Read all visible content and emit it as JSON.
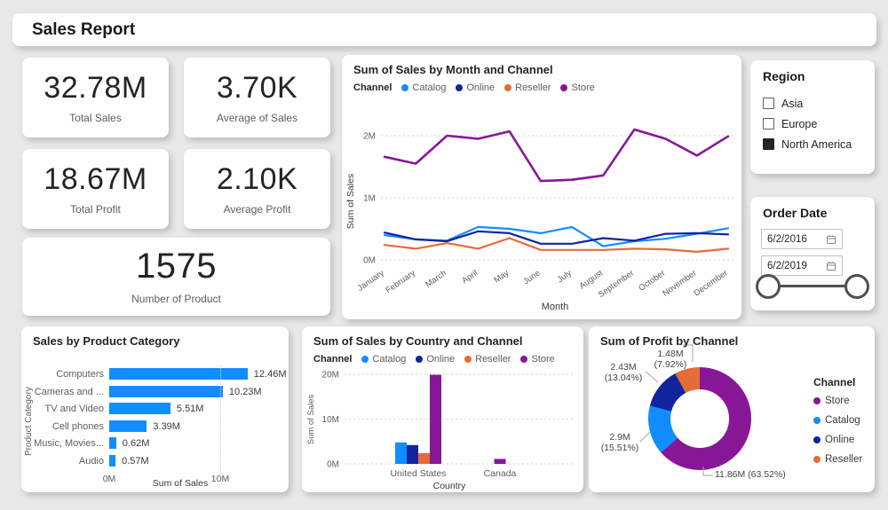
{
  "page": {
    "title": "Sales Report"
  },
  "palette": {
    "catalog": "#118DFF",
    "online": "#12239E",
    "reseller": "#E66C37",
    "store": "#881798",
    "bar_blue": "#118DFF"
  },
  "kpis": [
    {
      "value": "32.78M",
      "label": "Total Sales"
    },
    {
      "value": "3.70K",
      "label": "Average of Sales"
    },
    {
      "value": "18.67M",
      "label": "Total Profit"
    },
    {
      "value": "2.10K",
      "label": "Average Profit"
    },
    {
      "value": "1575",
      "label": "Number of Product"
    }
  ],
  "line_chart": {
    "type": "line",
    "title": "Sum of Sales by Month and Channel",
    "legend_title": "Channel",
    "xlabel": "Month",
    "ylabel": "Sum of Sales",
    "y_ticks": [
      "0M",
      "1M",
      "2M"
    ],
    "ylim": [
      0,
      2.3
    ],
    "categories": [
      "January",
      "February",
      "March",
      "April",
      "May",
      "June",
      "July",
      "August",
      "September",
      "October",
      "November",
      "December"
    ],
    "series": [
      {
        "name": "Catalog",
        "color_key": "catalog",
        "values": [
          0.4,
          0.33,
          0.31,
          0.53,
          0.5,
          0.43,
          0.53,
          0.22,
          0.3,
          0.34,
          0.42,
          0.51
        ]
      },
      {
        "name": "Online",
        "color_key": "online",
        "values": [
          0.44,
          0.33,
          0.3,
          0.46,
          0.43,
          0.26,
          0.26,
          0.35,
          0.31,
          0.42,
          0.43,
          0.41
        ]
      },
      {
        "name": "Reseller",
        "color_key": "reseller",
        "values": [
          0.24,
          0.18,
          0.27,
          0.18,
          0.35,
          0.16,
          0.16,
          0.16,
          0.18,
          0.17,
          0.13,
          0.18
        ]
      },
      {
        "name": "Store",
        "color_key": "store",
        "values": [
          1.66,
          1.55,
          2.0,
          1.95,
          2.07,
          1.27,
          1.29,
          1.36,
          2.1,
          1.95,
          1.68,
          1.99
        ]
      }
    ]
  },
  "region_filter": {
    "title": "Region",
    "options": [
      {
        "label": "Asia",
        "checked": false
      },
      {
        "label": "Europe",
        "checked": false
      },
      {
        "label": "North America",
        "checked": true
      }
    ]
  },
  "order_date": {
    "title": "Order Date",
    "start": "6/2/2016",
    "end": "6/2/2019"
  },
  "category_bar_chart": {
    "type": "bar",
    "title": "Sales by Product Category",
    "xlabel": "Sum of Sales",
    "ylabel": "Product Category",
    "x_ticks": [
      "0M",
      "10M"
    ],
    "xlim": [
      0,
      14
    ],
    "categories": [
      "Computers",
      "Cameras and ...",
      "TV and Video",
      "Cell phones",
      "Music, Movies...",
      "Audio"
    ],
    "values": [
      12.46,
      10.23,
      5.51,
      3.39,
      0.62,
      0.57
    ],
    "value_labels": [
      "12.46M",
      "10.23M",
      "5.51M",
      "3.39M",
      "0.62M",
      "0.57M"
    ]
  },
  "country_column_chart": {
    "type": "bar",
    "title": "Sum of Sales by Country and Channel",
    "legend_title": "Channel",
    "xlabel": "Country",
    "ylabel": "Sum of Sales",
    "y_ticks": [
      "0M",
      "10M",
      "20M"
    ],
    "ylim": [
      0,
      20
    ],
    "categories": [
      "United States",
      "Canada"
    ],
    "series": [
      {
        "name": "Catalog",
        "color_key": "catalog",
        "values": [
          4.8,
          0
        ]
      },
      {
        "name": "Online",
        "color_key": "online",
        "values": [
          4.2,
          0
        ]
      },
      {
        "name": "Reseller",
        "color_key": "reseller",
        "values": [
          2.4,
          0
        ]
      },
      {
        "name": "Store",
        "color_key": "store",
        "values": [
          19.9,
          1.1
        ]
      }
    ]
  },
  "profit_donut_chart": {
    "type": "pie",
    "title": "Sum of Profit by Channel",
    "legend_title": "Channel",
    "slices": [
      {
        "name": "Store",
        "color_key": "store",
        "value_label": "11.86M",
        "pct": 63.52,
        "pct_label": "(63.52%)"
      },
      {
        "name": "Catalog",
        "color_key": "catalog",
        "value_label": "2.9M",
        "pct": 15.51,
        "pct_label": "(15.51%)"
      },
      {
        "name": "Online",
        "color_key": "online",
        "value_label": "2.43M",
        "pct": 13.04,
        "pct_label": "(13.04%)"
      },
      {
        "name": "Reseller",
        "color_key": "reseller",
        "value_label": "1.48M",
        "pct": 7.92,
        "pct_label": "(7.92%)"
      }
    ]
  }
}
